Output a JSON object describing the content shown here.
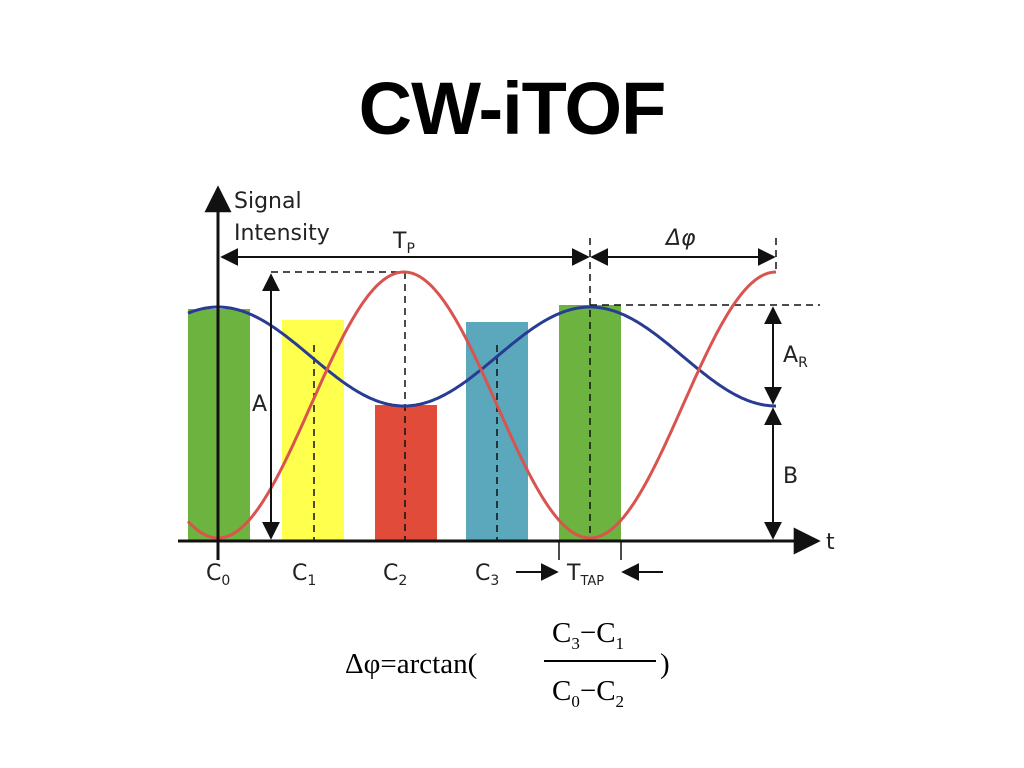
{
  "slide": {
    "title": "CW-iTOF"
  },
  "diagram": {
    "y_axis_label_line1": "Signal",
    "y_axis_label_line2": "Intensity",
    "x_axis_label": "t",
    "period_label": "T",
    "period_sub": "P",
    "phase_label": "Δφ",
    "amplitude_label": "A",
    "received_amp_label": "A",
    "received_amp_sub": "R",
    "offset_label": "B",
    "tap_label": "T",
    "tap_sub": "TAP",
    "taps": [
      {
        "label": "C",
        "sub": "0",
        "color": "#6db33f"
      },
      {
        "label": "C",
        "sub": "1",
        "color": "#ffff4d"
      },
      {
        "label": "C",
        "sub": "2",
        "color": "#e04b3a"
      },
      {
        "label": "C",
        "sub": "3",
        "color": "#5ba7bc"
      }
    ],
    "curve_colors": {
      "emitted": "#d9534f",
      "received": "#283c94"
    }
  },
  "formula": {
    "lhs": "Δφ=arctan(",
    "num_a": "C",
    "num_a_sub": "3",
    "minus": "−",
    "num_b": "C",
    "num_b_sub": "1",
    "den_a": "C",
    "den_a_sub": "0",
    "den_b": "C",
    "den_b_sub": "2",
    "close": ")"
  }
}
